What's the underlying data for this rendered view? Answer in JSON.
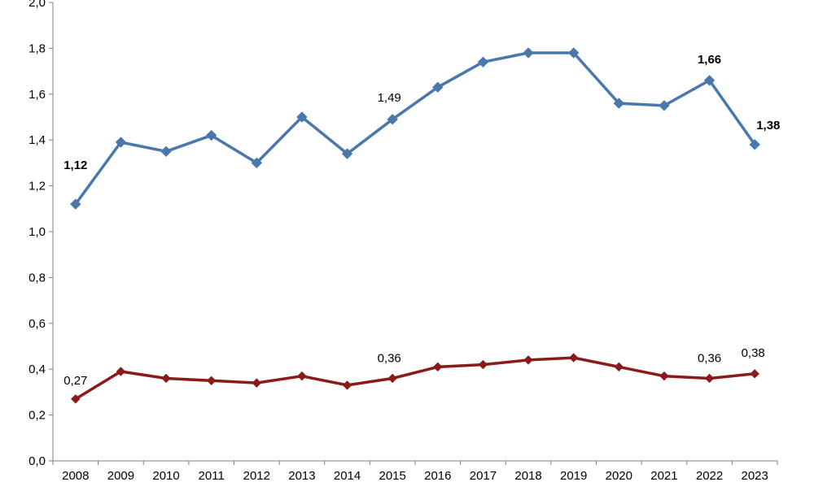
{
  "chart_data": {
    "type": "line",
    "title": "",
    "xlabel": "",
    "ylabel": "",
    "ylim": [
      0,
      2
    ],
    "y_tick_values": [
      0,
      0.2,
      0.4,
      0.6,
      0.8,
      1.0,
      1.2,
      1.4,
      1.6,
      1.8,
      2.0
    ],
    "y_tick_labels": [
      "0,0",
      "0,2",
      "0,4",
      "0,6",
      "0,8",
      "1,0",
      "1,2",
      "1,4",
      "1,6",
      "1,8",
      "2,0"
    ],
    "categories": [
      "2008",
      "2009",
      "2010",
      "2011",
      "2012",
      "2013",
      "2014",
      "2015",
      "2016",
      "2017",
      "2018",
      "2019",
      "2020",
      "2021",
      "2022",
      "2023"
    ],
    "grid": false,
    "legend": "none",
    "series": [
      {
        "color": "#4a78ad",
        "marker": "diamond",
        "values": [
          1.12,
          1.39,
          1.35,
          1.42,
          1.3,
          1.5,
          1.34,
          1.49,
          1.63,
          1.74,
          1.78,
          1.78,
          1.56,
          1.55,
          1.66,
          1.38
        ],
        "data_labels": [
          {
            "index": 0,
            "text": "1,12",
            "bold": true
          },
          {
            "index": 7,
            "text": "1,49",
            "bold": false
          },
          {
            "index": 14,
            "text": "1,66",
            "bold": true
          },
          {
            "index": 15,
            "text": "1,38",
            "bold": true
          }
        ]
      },
      {
        "color": "#8b1a1a",
        "marker": "diamond",
        "values": [
          0.27,
          0.39,
          0.36,
          0.35,
          0.34,
          0.37,
          0.33,
          0.36,
          0.41,
          0.42,
          0.44,
          0.45,
          0.41,
          0.37,
          0.36,
          0.38
        ],
        "data_labels": [
          {
            "index": 0,
            "text": "0,27",
            "bold": false
          },
          {
            "index": 7,
            "text": "0,36",
            "bold": false
          },
          {
            "index": 14,
            "text": "0,36",
            "bold": false
          },
          {
            "index": 15,
            "text": "0,38",
            "bold": false
          }
        ]
      }
    ]
  }
}
